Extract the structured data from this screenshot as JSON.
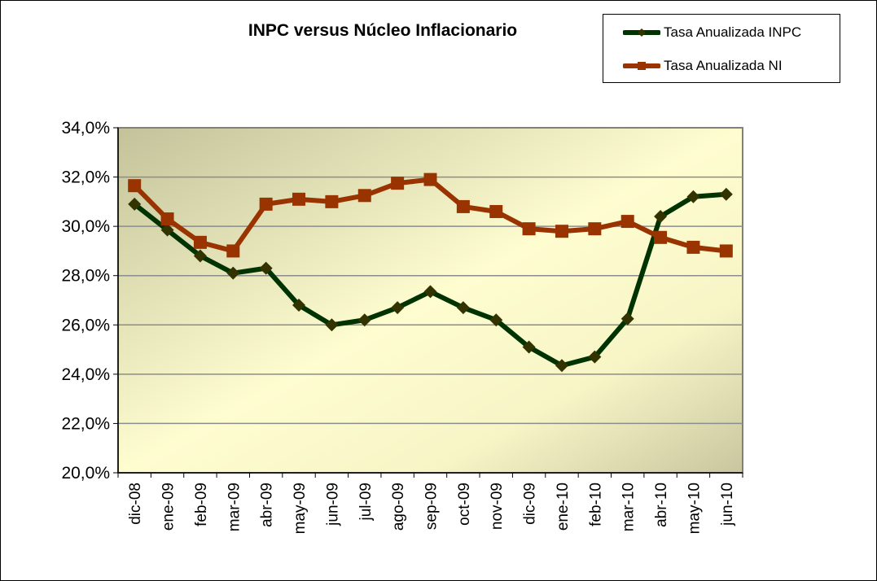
{
  "chart_data": {
    "type": "line",
    "title": "INPC versus Núcleo Inflacionario",
    "xlabel": "",
    "ylabel": "",
    "ylim": [
      20.0,
      34.0
    ],
    "yticks": [
      "20,0%",
      "22,0%",
      "24,0%",
      "26,0%",
      "28,0%",
      "30,0%",
      "32,0%",
      "34,0%"
    ],
    "grid": true,
    "legend_position": "top-right",
    "categories": [
      "dic-08",
      "ene-09",
      "feb-09",
      "mar-09",
      "abr-09",
      "may-09",
      "jun-09",
      "jul-09",
      "ago-09",
      "sep-09",
      "oct-09",
      "nov-09",
      "dic-09",
      "ene-10",
      "feb-10",
      "mar-10",
      "abr-10",
      "may-10",
      "jun-10"
    ],
    "series": [
      {
        "name": "Tasa Anualizada INPC",
        "color": "#003300",
        "marker": "diamond",
        "marker_color": "#333300",
        "values": [
          30.9,
          29.85,
          28.8,
          28.1,
          28.3,
          26.8,
          26.0,
          26.2,
          26.7,
          27.35,
          26.7,
          26.2,
          25.1,
          24.35,
          24.7,
          26.25,
          30.4,
          31.2,
          31.3
        ]
      },
      {
        "name": "Tasa Anualizada NI",
        "color": "#993300",
        "marker": "square",
        "marker_color": "#993300",
        "values": [
          31.65,
          30.3,
          29.35,
          29.0,
          30.9,
          31.1,
          31.0,
          31.25,
          31.75,
          31.9,
          30.8,
          30.6,
          29.9,
          29.8,
          29.9,
          30.2,
          29.55,
          29.15,
          29.0
        ]
      }
    ]
  },
  "legend": {
    "items": [
      {
        "label": "Tasa Anualizada INPC"
      },
      {
        "label": "Tasa Anualizada NI"
      }
    ]
  }
}
